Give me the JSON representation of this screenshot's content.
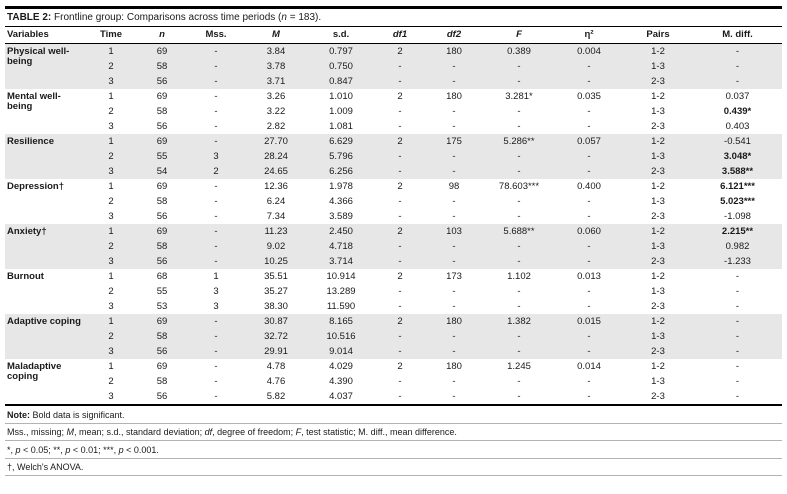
{
  "colors": {
    "row_band": "#e7e7e7",
    "border": "#000000"
  },
  "table": {
    "title_bold": "TABLE 2:",
    "title_text": " Frontline group: Comparisons across time periods (",
    "title_n": "n",
    "title_end": " = 183).",
    "columns": [
      {
        "key": "variable",
        "label": "Variables",
        "italic": false,
        "align": "left"
      },
      {
        "key": "time",
        "label": "Time",
        "italic": false
      },
      {
        "key": "n",
        "label": "n",
        "italic": true
      },
      {
        "key": "mss",
        "label": "Mss.",
        "italic": false
      },
      {
        "key": "m",
        "label": "M",
        "italic": true
      },
      {
        "key": "sd",
        "label": "s.d.",
        "italic": false
      },
      {
        "key": "df1",
        "label": "df1",
        "italic": true
      },
      {
        "key": "df2",
        "label": "df2",
        "italic": true
      },
      {
        "key": "f",
        "label": "F",
        "italic": true
      },
      {
        "key": "eta2",
        "label": "η²",
        "italic": false
      },
      {
        "key": "pairs",
        "label": "Pairs",
        "italic": false
      },
      {
        "key": "mdiff",
        "label": "M. diff.",
        "italic": false
      }
    ],
    "groups": [
      {
        "variable": "Physical well-being",
        "rows": [
          {
            "time": "1",
            "n": "69",
            "mss": "-",
            "m": "3.84",
            "sd": "0.797",
            "df1": "2",
            "df2": "180",
            "f": "0.389",
            "eta2": "0.004",
            "pairs": "1-2",
            "mdiff": "-",
            "mdiff_bold": false
          },
          {
            "time": "2",
            "n": "58",
            "mss": "-",
            "m": "3.78",
            "sd": "0.750",
            "df1": "-",
            "df2": "-",
            "f": "-",
            "eta2": "-",
            "pairs": "1-3",
            "mdiff": "-",
            "mdiff_bold": false
          },
          {
            "time": "3",
            "n": "56",
            "mss": "-",
            "m": "3.71",
            "sd": "0.847",
            "df1": "-",
            "df2": "-",
            "f": "-",
            "eta2": "-",
            "pairs": "2-3",
            "mdiff": "-",
            "mdiff_bold": false
          }
        ]
      },
      {
        "variable": "Mental well-being",
        "rows": [
          {
            "time": "1",
            "n": "69",
            "mss": "-",
            "m": "3.26",
            "sd": "1.010",
            "df1": "2",
            "df2": "180",
            "f": "3.281*",
            "eta2": "0.035",
            "pairs": "1-2",
            "mdiff": "0.037",
            "mdiff_bold": false
          },
          {
            "time": "2",
            "n": "58",
            "mss": "-",
            "m": "3.22",
            "sd": "1.009",
            "df1": "-",
            "df2": "-",
            "f": "-",
            "eta2": "-",
            "pairs": "1-3",
            "mdiff": "0.439*",
            "mdiff_bold": true
          },
          {
            "time": "3",
            "n": "56",
            "mss": "-",
            "m": "2.82",
            "sd": "1.081",
            "df1": "-",
            "df2": "-",
            "f": "-",
            "eta2": "-",
            "pairs": "2-3",
            "mdiff": "0.403",
            "mdiff_bold": false
          }
        ]
      },
      {
        "variable": "Resilience",
        "rows": [
          {
            "time": "1",
            "n": "69",
            "mss": "-",
            "m": "27.70",
            "sd": "6.629",
            "df1": "2",
            "df2": "175",
            "f": "5.286**",
            "eta2": "0.057",
            "pairs": "1-2",
            "mdiff": "-0.541",
            "mdiff_bold": false
          },
          {
            "time": "2",
            "n": "55",
            "mss": "3",
            "m": "28.24",
            "sd": "5.796",
            "df1": "-",
            "df2": "-",
            "f": "-",
            "eta2": "-",
            "pairs": "1-3",
            "mdiff": "3.048*",
            "mdiff_bold": true
          },
          {
            "time": "3",
            "n": "54",
            "mss": "2",
            "m": "24.65",
            "sd": "6.256",
            "df1": "-",
            "df2": "-",
            "f": "-",
            "eta2": "-",
            "pairs": "2-3",
            "mdiff": "3.588**",
            "mdiff_bold": true
          }
        ]
      },
      {
        "variable": "Depression†",
        "rows": [
          {
            "time": "1",
            "n": "69",
            "mss": "-",
            "m": "12.36",
            "sd": "1.978",
            "df1": "2",
            "df2": "98",
            "f": "78.603***",
            "eta2": "0.400",
            "pairs": "1-2",
            "mdiff": "6.121***",
            "mdiff_bold": true
          },
          {
            "time": "2",
            "n": "58",
            "mss": "-",
            "m": "6.24",
            "sd": "4.366",
            "df1": "-",
            "df2": "-",
            "f": "-",
            "eta2": "-",
            "pairs": "1-3",
            "mdiff": "5.023***",
            "mdiff_bold": true
          },
          {
            "time": "3",
            "n": "56",
            "mss": "-",
            "m": "7.34",
            "sd": "3.589",
            "df1": "-",
            "df2": "-",
            "f": "-",
            "eta2": "-",
            "pairs": "2-3",
            "mdiff": "-1.098",
            "mdiff_bold": false
          }
        ]
      },
      {
        "variable": "Anxiety†",
        "rows": [
          {
            "time": "1",
            "n": "69",
            "mss": "-",
            "m": "11.23",
            "sd": "2.450",
            "df1": "2",
            "df2": "103",
            "f": "5.688**",
            "eta2": "0.060",
            "pairs": "1-2",
            "mdiff": "2.215**",
            "mdiff_bold": true
          },
          {
            "time": "2",
            "n": "58",
            "mss": "-",
            "m": "9.02",
            "sd": "4.718",
            "df1": "-",
            "df2": "-",
            "f": "-",
            "eta2": "-",
            "pairs": "1-3",
            "mdiff": "0.982",
            "mdiff_bold": false
          },
          {
            "time": "3",
            "n": "56",
            "mss": "-",
            "m": "10.25",
            "sd": "3.714",
            "df1": "-",
            "df2": "-",
            "f": "-",
            "eta2": "-",
            "pairs": "2-3",
            "mdiff": "-1.233",
            "mdiff_bold": false
          }
        ]
      },
      {
        "variable": "Burnout",
        "rows": [
          {
            "time": "1",
            "n": "68",
            "mss": "1",
            "m": "35.51",
            "sd": "10.914",
            "df1": "2",
            "df2": "173",
            "f": "1.102",
            "eta2": "0.013",
            "pairs": "1-2",
            "mdiff": "-",
            "mdiff_bold": false
          },
          {
            "time": "2",
            "n": "55",
            "mss": "3",
            "m": "35.27",
            "sd": "13.289",
            "df1": "-",
            "df2": "-",
            "f": "-",
            "eta2": "-",
            "pairs": "1-3",
            "mdiff": "-",
            "mdiff_bold": false
          },
          {
            "time": "3",
            "n": "53",
            "mss": "3",
            "m": "38.30",
            "sd": "11.590",
            "df1": "-",
            "df2": "-",
            "f": "-",
            "eta2": "-",
            "pairs": "2-3",
            "mdiff": "-",
            "mdiff_bold": false
          }
        ]
      },
      {
        "variable": "Adaptive coping",
        "rows": [
          {
            "time": "1",
            "n": "69",
            "mss": "-",
            "m": "30.87",
            "sd": "8.165",
            "df1": "2",
            "df2": "180",
            "f": "1.382",
            "eta2": "0.015",
            "pairs": "1-2",
            "mdiff": "-",
            "mdiff_bold": false
          },
          {
            "time": "2",
            "n": "58",
            "mss": "-",
            "m": "32.72",
            "sd": "10.516",
            "df1": "-",
            "df2": "-",
            "f": "-",
            "eta2": "-",
            "pairs": "1-3",
            "mdiff": "-",
            "mdiff_bold": false
          },
          {
            "time": "3",
            "n": "56",
            "mss": "-",
            "m": "29.91",
            "sd": "9.014",
            "df1": "-",
            "df2": "-",
            "f": "-",
            "eta2": "-",
            "pairs": "2-3",
            "mdiff": "-",
            "mdiff_bold": false
          }
        ]
      },
      {
        "variable": "Maladaptive coping",
        "rows": [
          {
            "time": "1",
            "n": "69",
            "mss": "-",
            "m": "4.78",
            "sd": "4.029",
            "df1": "2",
            "df2": "180",
            "f": "1.245",
            "eta2": "0.014",
            "pairs": "1-2",
            "mdiff": "-",
            "mdiff_bold": false
          },
          {
            "time": "2",
            "n": "58",
            "mss": "-",
            "m": "4.76",
            "sd": "4.390",
            "df1": "-",
            "df2": "-",
            "f": "-",
            "eta2": "-",
            "pairs": "1-3",
            "mdiff": "-",
            "mdiff_bold": false
          },
          {
            "time": "3",
            "n": "56",
            "mss": "-",
            "m": "5.82",
            "sd": "4.037",
            "df1": "-",
            "df2": "-",
            "f": "-",
            "eta2": "-",
            "pairs": "2-3",
            "mdiff": "-",
            "mdiff_bold": false
          }
        ]
      }
    ],
    "notes": [
      [
        {
          "t": "Note:",
          "b": true
        },
        {
          "t": " Bold data is significant."
        }
      ],
      [
        {
          "t": "Mss., missing; "
        },
        {
          "t": "M",
          "i": true
        },
        {
          "t": ", mean; s.d., standard deviation; "
        },
        {
          "t": "df",
          "i": true
        },
        {
          "t": ", degree of freedom; "
        },
        {
          "t": "F",
          "i": true
        },
        {
          "t": ", test statistic; M. diff., mean difference."
        }
      ],
      [
        {
          "t": "*, "
        },
        {
          "t": "p",
          "i": true
        },
        {
          "t": " < 0.05; **, "
        },
        {
          "t": "p",
          "i": true
        },
        {
          "t": " < 0.01; ***, "
        },
        {
          "t": "p",
          "i": true
        },
        {
          "t": " < 0.001."
        }
      ],
      [
        {
          "t": "†, Welch's ANOVA."
        }
      ]
    ]
  }
}
